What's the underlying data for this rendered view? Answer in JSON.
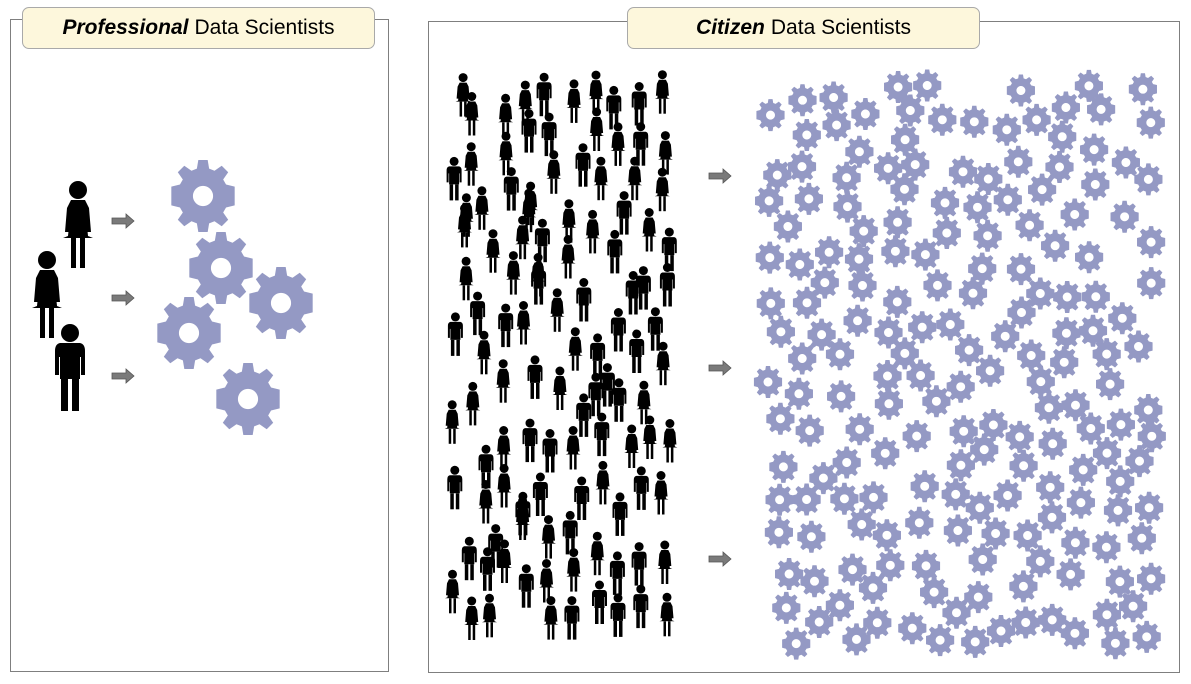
{
  "panels": {
    "left": {
      "title_emphasis": "Professional",
      "title_rest": "Data Scientists"
    },
    "right": {
      "title_emphasis": "Citizen",
      "title_rest": "Data Scientists"
    }
  },
  "colors": {
    "gear": "#9499c4",
    "person": "#000000",
    "arrow": "#7a7a7a",
    "title_bg": "#fdf7dc",
    "border": "#7f7f7f"
  },
  "icons": {
    "person": "person-icon",
    "gear": "gear-icon",
    "arrow": "arrow-icon"
  }
}
